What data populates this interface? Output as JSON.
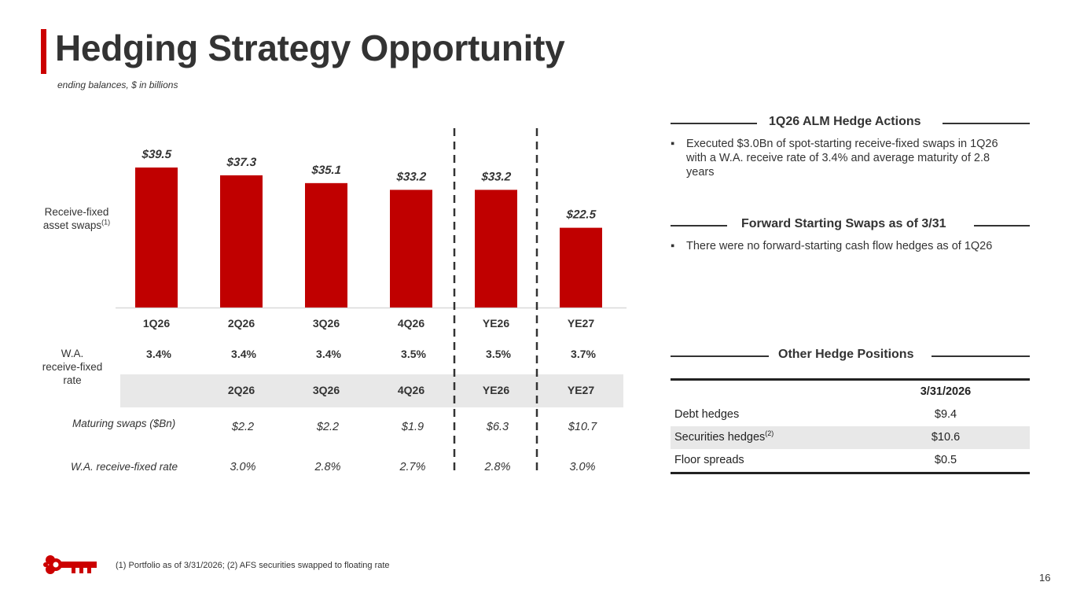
{
  "header": {
    "title": "Hedging Strategy Opportunity",
    "subtitle": "ending balances, $ in billions"
  },
  "chart_data": {
    "type": "bar",
    "title": "Receive-fixed asset swaps",
    "ylabel": "Receive-fixed asset swaps",
    "ylabel_sup": "(1)",
    "categories": [
      "1Q26",
      "2Q26",
      "3Q26",
      "4Q26",
      "YE26",
      "YE27"
    ],
    "values": [
      39.5,
      37.3,
      35.1,
      33.2,
      33.2,
      22.5
    ],
    "value_labels": [
      "$39.5",
      "$37.3",
      "$35.1",
      "$33.2",
      "$33.2",
      "$22.5"
    ],
    "ylim": [
      0,
      45
    ],
    "bar_color": "#c00000",
    "rate_row_label": "W.A. receive-fixed rate",
    "rates": [
      "3.4%",
      "3.4%",
      "3.4%",
      "3.5%",
      "3.5%",
      "3.7%"
    ]
  },
  "maturing_table": {
    "headers": [
      "2Q26",
      "3Q26",
      "4Q26",
      "YE26",
      "YE27"
    ],
    "rows": [
      {
        "label": "Maturing swaps ($Bn)",
        "values": [
          "$2.2",
          "$2.2",
          "$1.9",
          "$6.3",
          "$10.7"
        ]
      },
      {
        "label": "W.A. receive-fixed rate",
        "values": [
          "3.0%",
          "2.8%",
          "2.7%",
          "2.8%",
          "3.0%"
        ]
      }
    ]
  },
  "alm": {
    "heading": "1Q26 ALM Hedge Actions",
    "bullet_line1": "Executed $3.0Bn of spot-starting receive-fixed swaps in 1Q26",
    "bullet_line2": "with a W.A. receive rate of 3.4% and average maturity of 2.8",
    "bullet_line3": "years"
  },
  "forward": {
    "heading": "Forward Starting Swaps as of 3/31",
    "bullet": "There were no forward-starting cash flow hedges as of 1Q26"
  },
  "other": {
    "heading": "Other Hedge Positions",
    "column_header": "3/31/2026",
    "rows": [
      {
        "label": "Debt hedges",
        "sup": "",
        "value": "$9.4"
      },
      {
        "label": "Securities hedges",
        "sup": "(2)",
        "value": "$10.6"
      },
      {
        "label": "Floor spreads",
        "sup": "",
        "value": "$0.5"
      }
    ]
  },
  "bullet_char": "▪",
  "footnote": "(1) Portfolio as of 3/31/2026; (2) AFS securities swapped to floating rate",
  "page_number": "16",
  "colors": {
    "accent": "#cc0000",
    "bar": "#c00000",
    "band": "#e8e8e8"
  }
}
